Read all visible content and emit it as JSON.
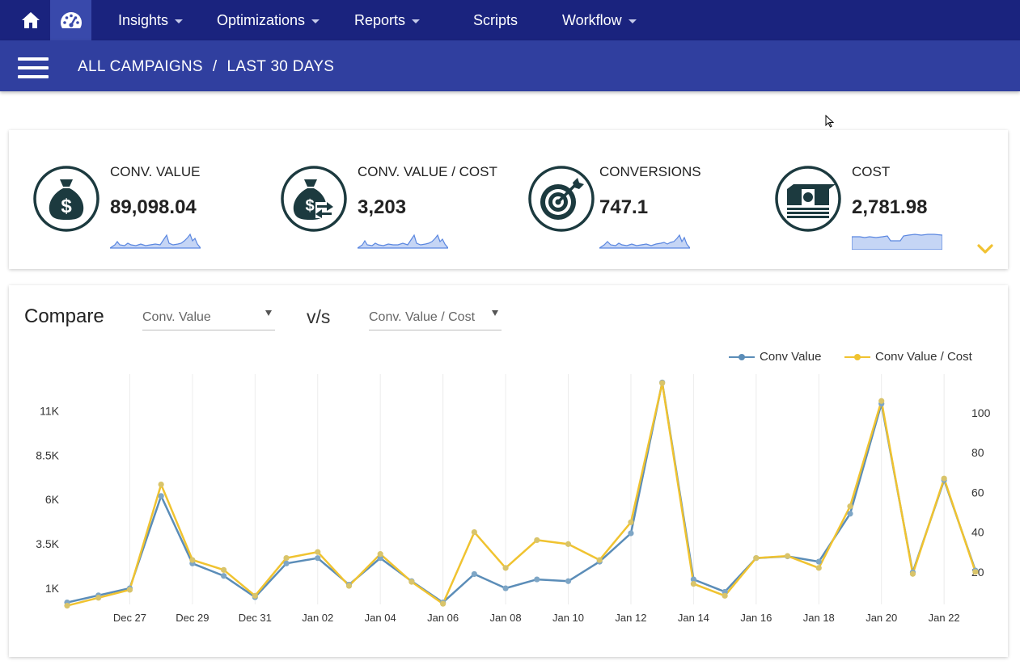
{
  "nav": {
    "home_icon": "home-icon",
    "dashboard_icon": "speedometer-icon",
    "items": [
      {
        "label": "Insights",
        "has_menu": true
      },
      {
        "label": "Optimizations",
        "has_menu": true
      },
      {
        "label": "Reports",
        "has_menu": true
      },
      {
        "label": "Scripts",
        "has_menu": false
      },
      {
        "label": "Workflow",
        "has_menu": true
      }
    ]
  },
  "subbar": {
    "breadcrumb": [
      "ALL CAMPAIGNS",
      "LAST 30 DAYS"
    ],
    "separator": "/"
  },
  "kpis": [
    {
      "label": "CONV. VALUE",
      "value": "89,098.04",
      "icon": "money-bag-icon"
    },
    {
      "label": "CONV. VALUE / COST",
      "value": "3,203",
      "icon": "money-bag-exchange-icon"
    },
    {
      "label": "CONVERSIONS",
      "value": "747.1",
      "icon": "target-arrow-icon"
    },
    {
      "label": "COST",
      "value": "2,781.98",
      "icon": "cash-stack-icon"
    }
  ],
  "compare": {
    "title": "Compare",
    "vs": "v/s",
    "left_metric": "Conv. Value",
    "right_metric": "Conv. Value / Cost"
  },
  "colors": {
    "nav_bg": "#1a237e",
    "nav_active": "#3949ab",
    "subbar_bg": "#303f9f",
    "icon_dark": "#1c3a3f",
    "accent_yellow": "#f1c232",
    "series_blue": "#5b8db8",
    "series_yellow": "#f0c330",
    "spark_fill": "#c5d5f5",
    "spark_line": "#5b87e0"
  },
  "chart_data": {
    "type": "line",
    "x_tick_labels": [
      "Dec 27",
      "Dec 29",
      "Dec 31",
      "Jan 02",
      "Jan 04",
      "Jan 06",
      "Jan 08",
      "Jan 10",
      "Jan 12",
      "Jan 14",
      "Jan 16",
      "Jan 18",
      "Jan 20",
      "Jan 22"
    ],
    "x": [
      "Dec 25",
      "Dec 26",
      "Dec 27",
      "Dec 28",
      "Dec 29",
      "Dec 30",
      "Dec 31",
      "Jan 01",
      "Jan 02",
      "Jan 03",
      "Jan 04",
      "Jan 05",
      "Jan 06",
      "Jan 07",
      "Jan 08",
      "Jan 09",
      "Jan 10",
      "Jan 11",
      "Jan 12",
      "Jan 13",
      "Jan 14",
      "Jan 15",
      "Jan 16",
      "Jan 17",
      "Jan 18",
      "Jan 19",
      "Jan 20",
      "Jan 21",
      "Jan 22",
      "Jan 23"
    ],
    "y_left_ticks": [
      "1K",
      "3.5K",
      "6K",
      "8.5K",
      "11K"
    ],
    "y_left_tick_values": [
      1000,
      3500,
      6000,
      8500,
      11000
    ],
    "y_left_range": [
      0,
      12700
    ],
    "y_right_ticks": [
      "20",
      "40",
      "60",
      "80",
      "100"
    ],
    "y_right_tick_values": [
      20,
      40,
      60,
      80,
      100
    ],
    "y_right_range": [
      2,
      117
    ],
    "series": [
      {
        "name": "Conv Value",
        "axis": "left",
        "values": [
          200,
          600,
          1000,
          6200,
          2400,
          1700,
          500,
          2400,
          2700,
          1200,
          2700,
          1400,
          200,
          1800,
          1000,
          1500,
          1400,
          2500,
          4100,
          12600,
          1500,
          800,
          2700,
          2800,
          2500,
          5200,
          11400,
          1900,
          7100,
          2000
        ]
      },
      {
        "name": "Conv Value / Cost",
        "axis": "right",
        "values": [
          3,
          7,
          11,
          64,
          26,
          21,
          8,
          27,
          30,
          13,
          29,
          15,
          4,
          40,
          22,
          36,
          34,
          26,
          45,
          115,
          14,
          8,
          27,
          28,
          22,
          53,
          106,
          19,
          67,
          20
        ]
      }
    ]
  }
}
